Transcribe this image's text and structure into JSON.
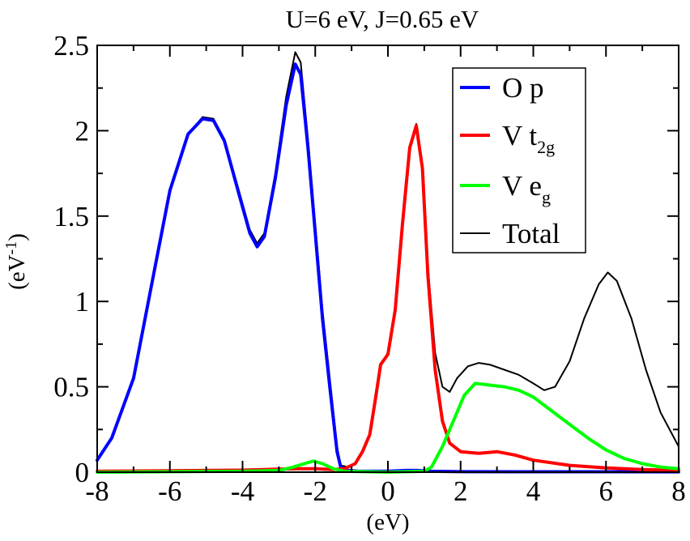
{
  "chart_data": {
    "type": "line",
    "title": "U=6 eV, J=0.65 eV",
    "xlabel": "(eV)",
    "ylabel": "(eV",
    "ylabel_sup": "-1",
    "ylabel_close": ")",
    "xlim": [
      -8,
      8
    ],
    "ylim": [
      0,
      2.5
    ],
    "xticks": [
      -8,
      -6,
      -4,
      -2,
      0,
      2,
      4,
      6,
      8
    ],
    "xtick_labels": [
      "-8",
      "-6",
      "-4",
      "-2",
      "0",
      "2",
      "4",
      "6",
      "8"
    ],
    "yticks": [
      0,
      0.5,
      1,
      1.5,
      2,
      2.5
    ],
    "ytick_labels": [
      "0",
      "0.5",
      "1",
      "1.5",
      "2",
      "2.5"
    ],
    "legend_position": "top-right",
    "series": [
      {
        "key": "total",
        "legend_main": "Total",
        "legend_sub": "",
        "color": "#000000",
        "width": 2,
        "points": [
          [
            -8,
            0.07
          ],
          [
            -7.6,
            0.2
          ],
          [
            -7,
            0.55
          ],
          [
            -6.5,
            1.1
          ],
          [
            -6,
            1.65
          ],
          [
            -5.5,
            1.98
          ],
          [
            -5.1,
            2.08
          ],
          [
            -4.8,
            2.07
          ],
          [
            -4.5,
            1.95
          ],
          [
            -4.1,
            1.65
          ],
          [
            -3.8,
            1.42
          ],
          [
            -3.6,
            1.34
          ],
          [
            -3.4,
            1.4
          ],
          [
            -3.1,
            1.75
          ],
          [
            -2.8,
            2.2
          ],
          [
            -2.55,
            2.46
          ],
          [
            -2.4,
            2.4
          ],
          [
            -2.2,
            1.95
          ],
          [
            -2,
            1.45
          ],
          [
            -1.8,
            0.95
          ],
          [
            -1.6,
            0.55
          ],
          [
            -1.4,
            0.15
          ],
          [
            -1.3,
            0.04
          ],
          [
            -1.1,
            0.03
          ],
          [
            -0.9,
            0.05
          ],
          [
            -0.7,
            0.12
          ],
          [
            -0.5,
            0.22
          ],
          [
            -0.35,
            0.42
          ],
          [
            -0.2,
            0.63
          ],
          [
            0,
            0.7
          ],
          [
            0.2,
            0.95
          ],
          [
            0.4,
            1.45
          ],
          [
            0.6,
            1.9
          ],
          [
            0.78,
            2.04
          ],
          [
            0.95,
            1.8
          ],
          [
            1.1,
            1.2
          ],
          [
            1.3,
            0.7
          ],
          [
            1.5,
            0.5
          ],
          [
            1.7,
            0.47
          ],
          [
            1.9,
            0.55
          ],
          [
            2.2,
            0.62
          ],
          [
            2.5,
            0.64
          ],
          [
            2.8,
            0.63
          ],
          [
            3.2,
            0.6
          ],
          [
            3.6,
            0.57
          ],
          [
            4,
            0.52
          ],
          [
            4.3,
            0.48
          ],
          [
            4.6,
            0.5
          ],
          [
            5,
            0.65
          ],
          [
            5.4,
            0.9
          ],
          [
            5.8,
            1.1
          ],
          [
            6.05,
            1.17
          ],
          [
            6.3,
            1.12
          ],
          [
            6.7,
            0.9
          ],
          [
            7.1,
            0.6
          ],
          [
            7.5,
            0.35
          ],
          [
            8,
            0.15
          ]
        ]
      },
      {
        "key": "op",
        "legend_main": "O p",
        "legend_sub": "",
        "color": "#0000ff",
        "width": 4,
        "points": [
          [
            -8,
            0.07
          ],
          [
            -7.6,
            0.2
          ],
          [
            -7,
            0.55
          ],
          [
            -6.5,
            1.1
          ],
          [
            -6,
            1.65
          ],
          [
            -5.5,
            1.98
          ],
          [
            -5.1,
            2.07
          ],
          [
            -4.8,
            2.06
          ],
          [
            -4.5,
            1.94
          ],
          [
            -4.1,
            1.63
          ],
          [
            -3.8,
            1.4
          ],
          [
            -3.6,
            1.32
          ],
          [
            -3.4,
            1.38
          ],
          [
            -3.1,
            1.72
          ],
          [
            -2.8,
            2.15
          ],
          [
            -2.55,
            2.39
          ],
          [
            -2.4,
            2.33
          ],
          [
            -2.2,
            1.9
          ],
          [
            -2,
            1.4
          ],
          [
            -1.8,
            0.9
          ],
          [
            -1.6,
            0.5
          ],
          [
            -1.4,
            0.12
          ],
          [
            -1.3,
            0.03
          ],
          [
            -1.1,
            0.01
          ],
          [
            -0.8,
            0.005
          ],
          [
            0,
            0.005
          ],
          [
            0.5,
            0.01
          ],
          [
            0.8,
            0.01
          ],
          [
            1.2,
            0.005
          ],
          [
            2,
            0.003
          ],
          [
            8,
            0.002
          ]
        ]
      },
      {
        "key": "vt2g",
        "legend_main": "V t",
        "legend_sub": "2g",
        "color": "#ff0000",
        "width": 4,
        "points": [
          [
            -8,
            0.005
          ],
          [
            -6,
            0.008
          ],
          [
            -4,
            0.012
          ],
          [
            -3,
            0.018
          ],
          [
            -2.5,
            0.02
          ],
          [
            -2,
            0.02
          ],
          [
            -1.5,
            0.015
          ],
          [
            -1.2,
            0.02
          ],
          [
            -0.9,
            0.05
          ],
          [
            -0.7,
            0.12
          ],
          [
            -0.5,
            0.22
          ],
          [
            -0.35,
            0.42
          ],
          [
            -0.2,
            0.63
          ],
          [
            0,
            0.69
          ],
          [
            0.2,
            0.95
          ],
          [
            0.4,
            1.45
          ],
          [
            0.6,
            1.9
          ],
          [
            0.78,
            2.03
          ],
          [
            0.95,
            1.78
          ],
          [
            1.1,
            1.15
          ],
          [
            1.3,
            0.6
          ],
          [
            1.5,
            0.3
          ],
          [
            1.7,
            0.17
          ],
          [
            2,
            0.12
          ],
          [
            2.5,
            0.11
          ],
          [
            3,
            0.12
          ],
          [
            3.5,
            0.1
          ],
          [
            4,
            0.07
          ],
          [
            5,
            0.04
          ],
          [
            6,
            0.025
          ],
          [
            7,
            0.015
          ],
          [
            8,
            0.01
          ]
        ]
      },
      {
        "key": "veg",
        "legend_main": "V e",
        "legend_sub": "g",
        "color": "#00ff00",
        "width": 4,
        "points": [
          [
            -8,
            0.0
          ],
          [
            -4,
            0.005
          ],
          [
            -3,
            0.01
          ],
          [
            -2.6,
            0.03
          ],
          [
            -2.3,
            0.05
          ],
          [
            -2.05,
            0.065
          ],
          [
            -1.8,
            0.05
          ],
          [
            -1.5,
            0.02
          ],
          [
            -1.2,
            0.005
          ],
          [
            0,
            0.0
          ],
          [
            1,
            0.005
          ],
          [
            1.2,
            0.03
          ],
          [
            1.5,
            0.15
          ],
          [
            1.8,
            0.3
          ],
          [
            2.1,
            0.45
          ],
          [
            2.4,
            0.52
          ],
          [
            2.8,
            0.51
          ],
          [
            3.2,
            0.5
          ],
          [
            3.6,
            0.48
          ],
          [
            4,
            0.44
          ],
          [
            4.5,
            0.36
          ],
          [
            5,
            0.28
          ],
          [
            5.5,
            0.2
          ],
          [
            6,
            0.13
          ],
          [
            6.5,
            0.08
          ],
          [
            7,
            0.05
          ],
          [
            7.5,
            0.03
          ],
          [
            8,
            0.02
          ]
        ]
      }
    ],
    "legend_order": [
      "op",
      "vt2g",
      "veg",
      "total"
    ]
  }
}
